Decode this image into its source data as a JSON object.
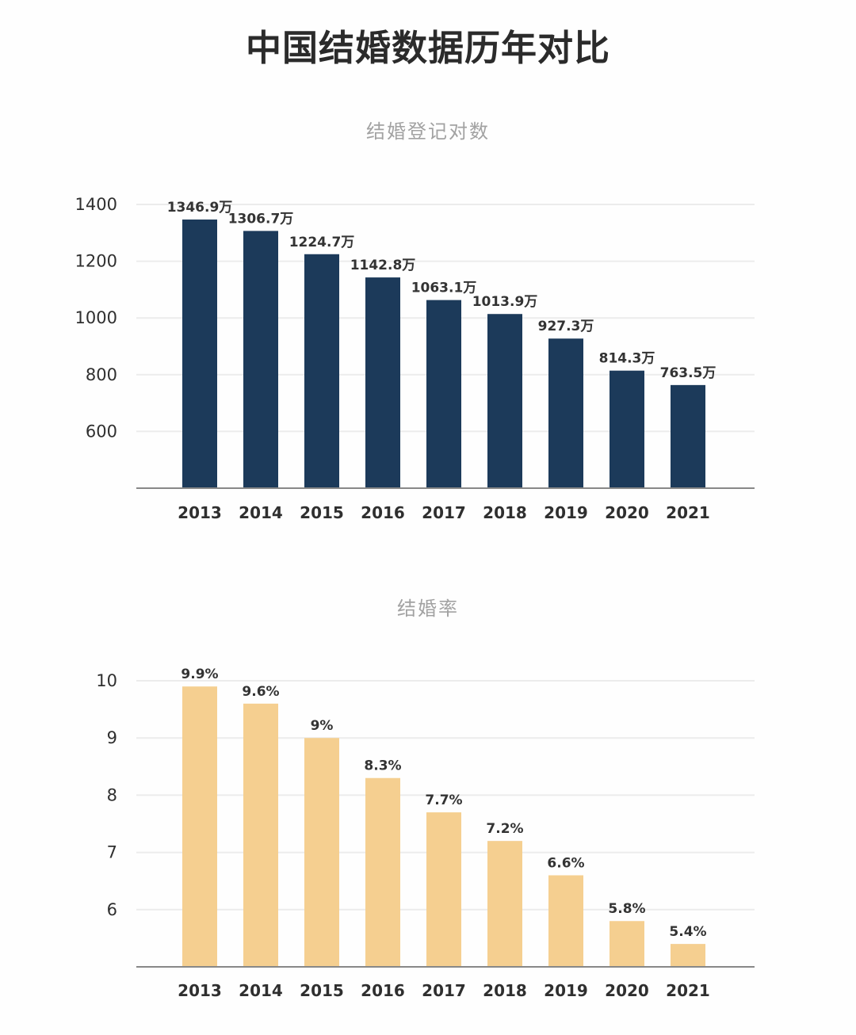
{
  "page": {
    "title": "中国结婚数据历年对比"
  },
  "chart_data": [
    {
      "id": "marriage-registrations",
      "type": "bar",
      "title": "结婚登记对数",
      "unit": "万",
      "categories": [
        "2013",
        "2014",
        "2015",
        "2016",
        "2017",
        "2018",
        "2019",
        "2020",
        "2021"
      ],
      "values": [
        1346.9,
        1306.7,
        1224.7,
        1142.8,
        1063.1,
        1013.9,
        927.3,
        814.3,
        763.5
      ],
      "value_labels": [
        "1346.9万",
        "1306.7万",
        "1224.7万",
        "1142.8万",
        "1063.1万",
        "1013.9万",
        "927.3万",
        "814.3万",
        "763.5万"
      ],
      "y_ticks": [
        1400,
        1200,
        1000,
        800,
        600
      ],
      "ylim": [
        400,
        1400
      ],
      "grid": true,
      "legend": false,
      "bar_color": "#1c3a5a"
    },
    {
      "id": "marriage-rate",
      "type": "bar",
      "title": "结婚率",
      "unit": "%",
      "categories": [
        "2013",
        "2014",
        "2015",
        "2016",
        "2017",
        "2018",
        "2019",
        "2020",
        "2021"
      ],
      "values": [
        9.9,
        9.6,
        9,
        8.3,
        7.7,
        7.2,
        6.6,
        5.8,
        5.4
      ],
      "value_labels": [
        "9.9%",
        "9.6%",
        "9%",
        "8.3%",
        "7.7%",
        "7.2%",
        "6.6%",
        "5.8%",
        "5.4%"
      ],
      "y_ticks": [
        10,
        9,
        8,
        7,
        6
      ],
      "ylim": [
        5,
        10
      ],
      "grid": true,
      "legend": false,
      "bar_color": "#f5cf90"
    }
  ]
}
